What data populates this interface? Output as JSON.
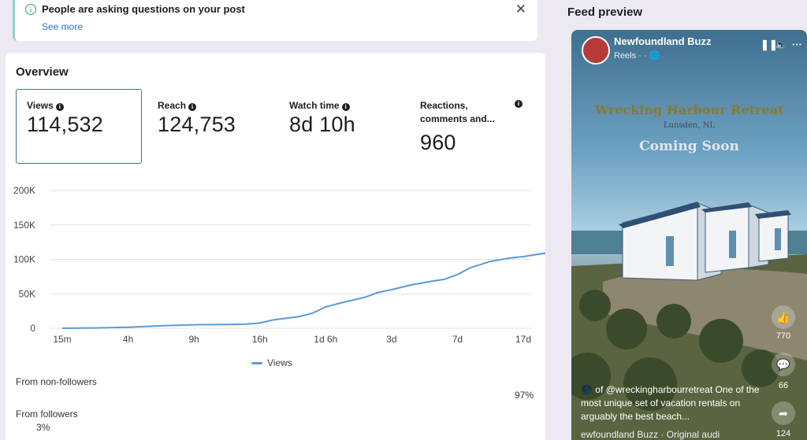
{
  "notification": {
    "title": "People are asking questions on your post",
    "link": "See more",
    "close": "✕"
  },
  "overview": {
    "title": "Overview",
    "metrics": [
      {
        "label": "Views",
        "value": "114,532"
      },
      {
        "label": "Reach",
        "value": "124,753"
      },
      {
        "label": "Watch time",
        "value": "8d 10h"
      },
      {
        "label": "Reactions, comments and...",
        "value": "960"
      }
    ]
  },
  "chart_data": {
    "type": "line",
    "x": [
      "15m",
      "4h",
      "9h",
      "16h",
      "1d 6h",
      "3d",
      "7d",
      "17d"
    ],
    "y_ticks": [
      "0",
      "50K",
      "100K",
      "150K",
      "200K"
    ],
    "ylim": [
      0,
      200000
    ],
    "series": [
      {
        "name": "Views",
        "color": "#5b9bd5",
        "points": [
          [
            0,
            0
          ],
          [
            0.5,
            500
          ],
          [
            1,
            1500
          ],
          [
            1.5,
            3500
          ],
          [
            2,
            5000
          ],
          [
            2.5,
            5500
          ],
          [
            2.8,
            6000
          ],
          [
            3,
            7500
          ],
          [
            3.2,
            12000
          ],
          [
            3.6,
            17000
          ],
          [
            3.8,
            22000
          ],
          [
            4,
            31000
          ],
          [
            4.2,
            36000
          ],
          [
            4.6,
            45000
          ],
          [
            4.8,
            52000
          ],
          [
            5,
            56000
          ],
          [
            5.3,
            63000
          ],
          [
            5.6,
            68000
          ],
          [
            5.8,
            71000
          ],
          [
            6,
            78000
          ],
          [
            6.2,
            88000
          ],
          [
            6.5,
            97000
          ],
          [
            6.8,
            102000
          ],
          [
            7,
            104000
          ],
          [
            7.4,
            110000
          ],
          [
            7.8,
            112000
          ]
        ]
      }
    ],
    "legend": "Views"
  },
  "followers": {
    "non_followers_label": "From non-followers",
    "non_followers_pct": "97%",
    "followers_label": "From followers",
    "followers_pct": "3%"
  },
  "feed_preview": {
    "title": "Feed preview",
    "page_name": "Newfoundland Buzz",
    "sub": "Reels · · ",
    "hero_title": "Wrecking Harbour Retreat",
    "hero_location": "Lunsden, NL",
    "hero_coming": "Coming Soon",
    "likes": "770",
    "comments": "66",
    "shares": "124",
    "caption": "🌑 of @wreckingharbourretreat One of the most unique set of vacation rentals on arguably the best beach...",
    "audio": "ewfoundland Buzz · Original audi"
  }
}
